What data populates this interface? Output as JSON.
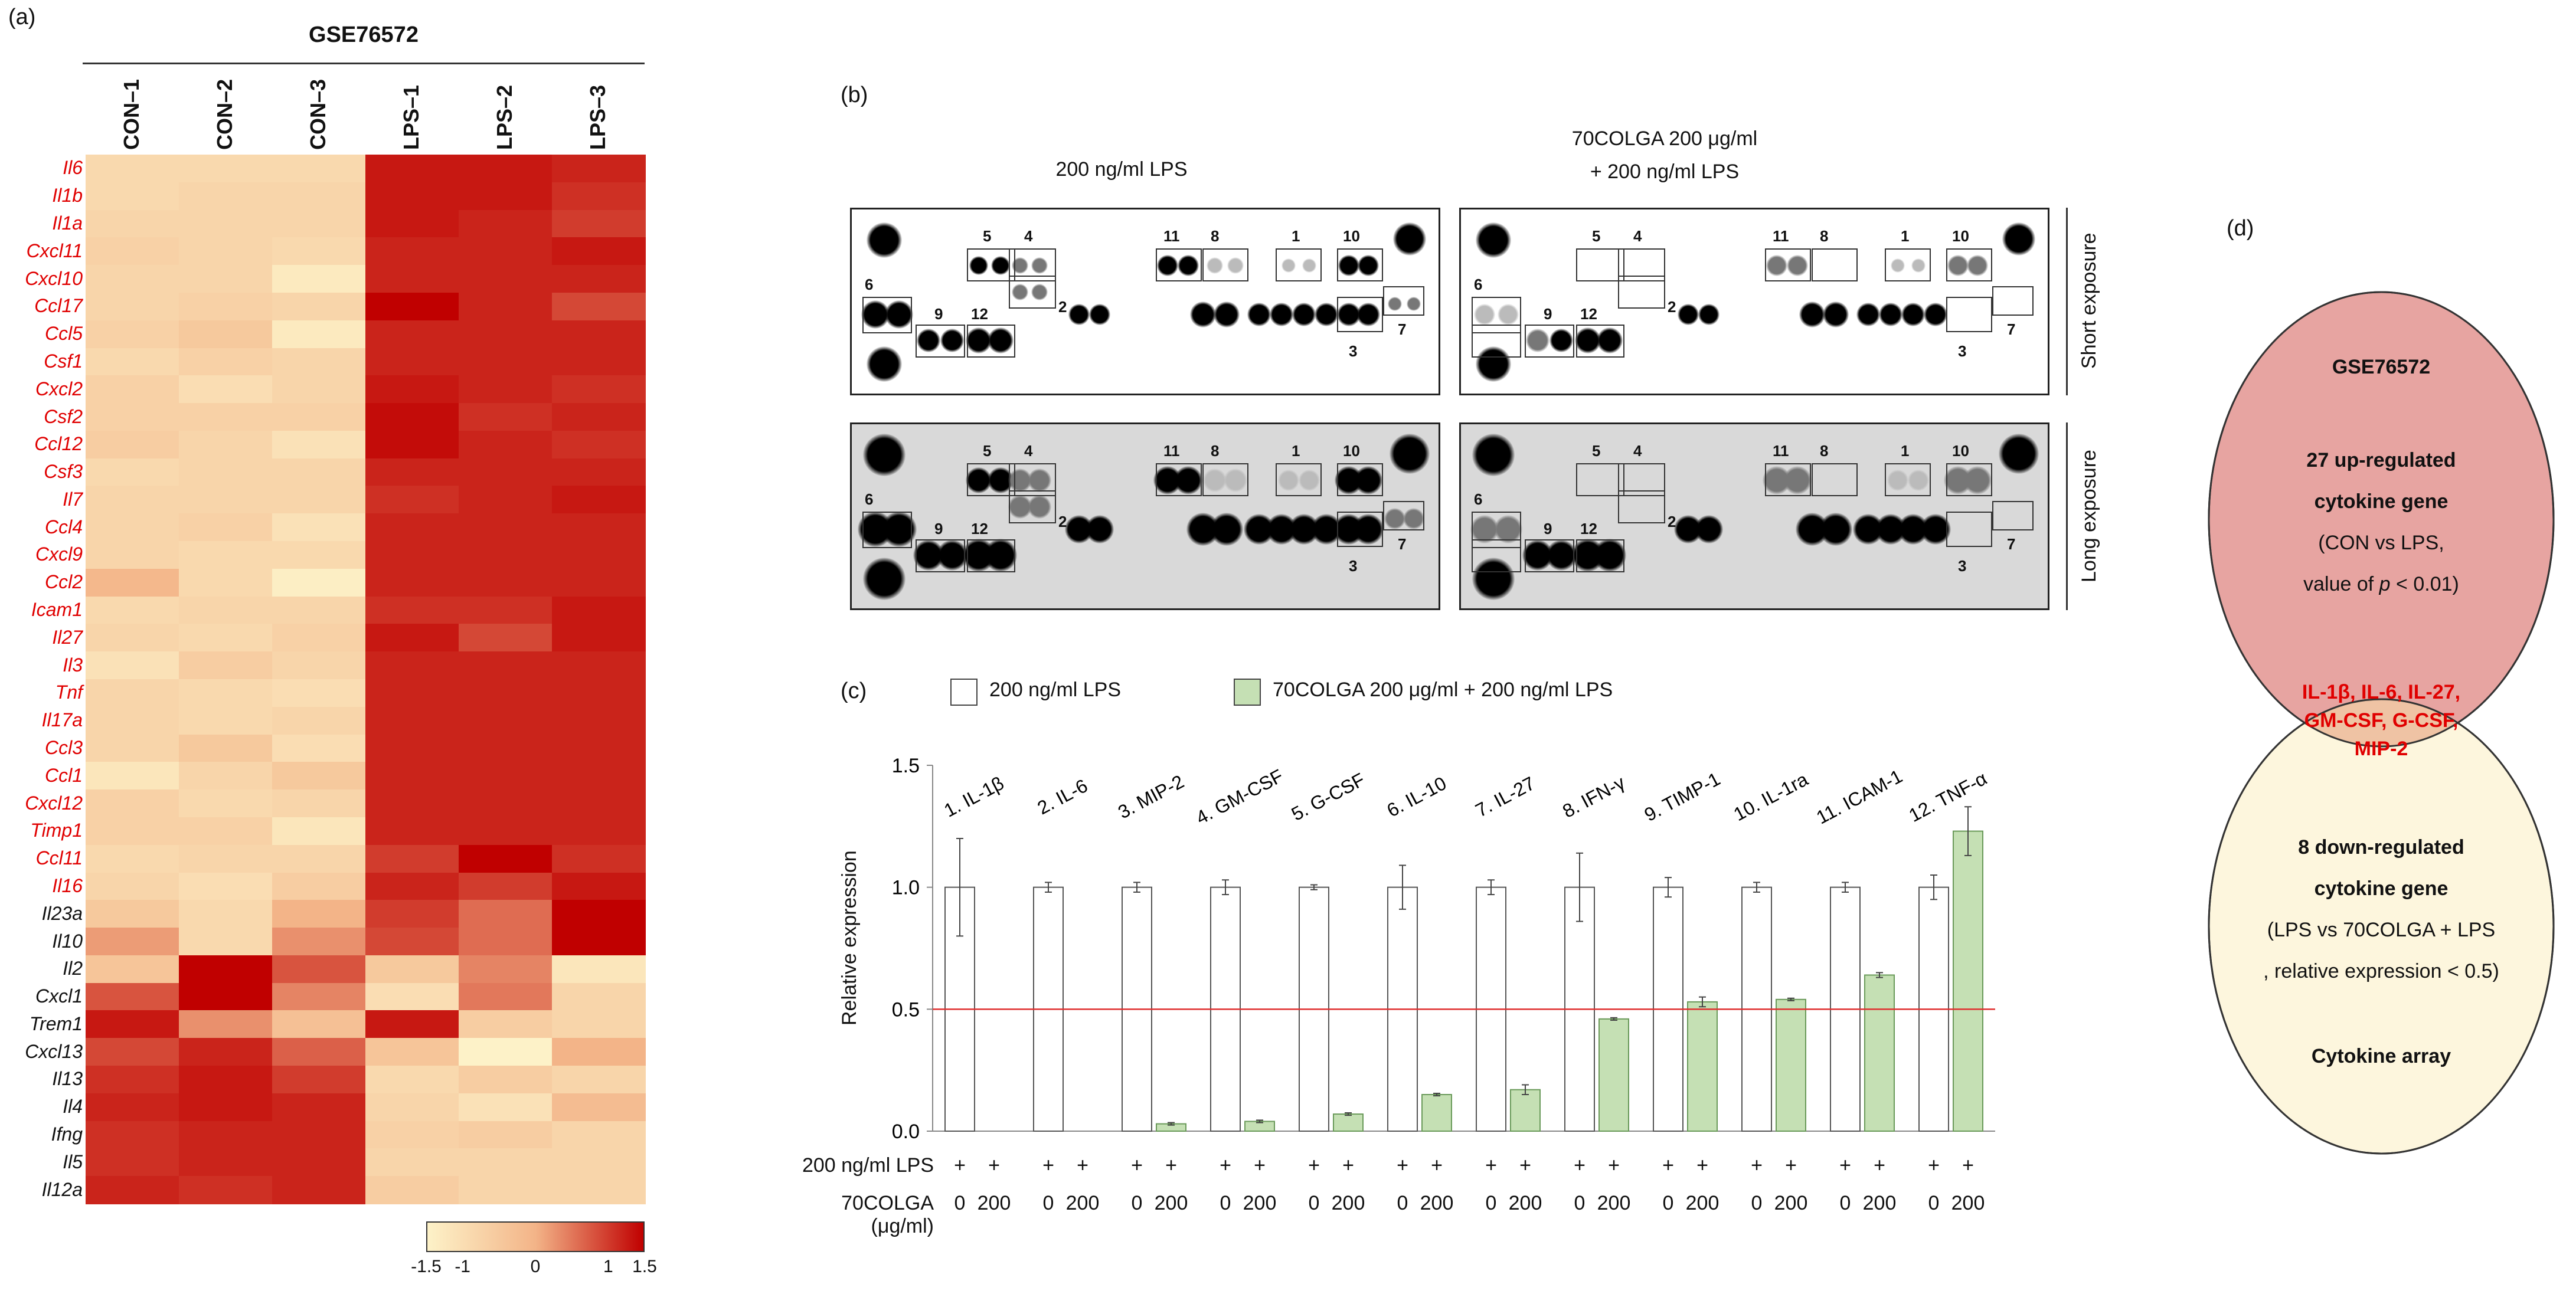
{
  "panels": {
    "a": "(a)",
    "b": "(b)",
    "c": "(c)",
    "d": "(d)"
  },
  "heatmap": {
    "title": "GSE76572",
    "columns": [
      "CON–1",
      "CON–2",
      "CON–3",
      "LPS–1",
      "LPS–2",
      "LPS–3"
    ],
    "genes": [
      {
        "name": "Il6",
        "up": true,
        "z": [
          -0.9,
          -0.9,
          -0.9,
          1.3,
          1.3,
          1.2
        ]
      },
      {
        "name": "Il1b",
        "up": true,
        "z": [
          -0.9,
          -0.8,
          -0.8,
          1.3,
          1.3,
          1.1
        ]
      },
      {
        "name": "Il1a",
        "up": true,
        "z": [
          -0.8,
          -0.8,
          -0.8,
          1.3,
          1.2,
          1.0
        ]
      },
      {
        "name": "Cxcl11",
        "up": true,
        "z": [
          -0.7,
          -0.8,
          -0.9,
          1.2,
          1.2,
          1.3
        ]
      },
      {
        "name": "Cxcl10",
        "up": true,
        "z": [
          -0.8,
          -0.8,
          -1.3,
          1.2,
          1.2,
          1.2
        ]
      },
      {
        "name": "Ccl17",
        "up": true,
        "z": [
          -0.8,
          -0.7,
          -0.8,
          1.5,
          1.2,
          0.9
        ]
      },
      {
        "name": "Ccl5",
        "up": true,
        "z": [
          -0.7,
          -0.5,
          -1.3,
          1.2,
          1.2,
          1.2
        ]
      },
      {
        "name": "Csf1",
        "up": true,
        "z": [
          -0.9,
          -0.7,
          -0.8,
          1.2,
          1.2,
          1.2
        ]
      },
      {
        "name": "Cxcl2",
        "up": true,
        "z": [
          -0.7,
          -1.0,
          -0.8,
          1.3,
          1.2,
          1.1
        ]
      },
      {
        "name": "Csf2",
        "up": true,
        "z": [
          -0.7,
          -0.7,
          -0.7,
          1.4,
          1.1,
          1.2
        ]
      },
      {
        "name": "Ccl12",
        "up": true,
        "z": [
          -0.6,
          -0.8,
          -1.1,
          1.4,
          1.2,
          1.1
        ]
      },
      {
        "name": "Csf3",
        "up": true,
        "z": [
          -0.9,
          -0.8,
          -0.8,
          1.2,
          1.2,
          1.2
        ]
      },
      {
        "name": "Il7",
        "up": true,
        "z": [
          -0.8,
          -0.8,
          -0.8,
          1.1,
          1.2,
          1.3
        ]
      },
      {
        "name": "Ccl4",
        "up": true,
        "z": [
          -0.8,
          -0.7,
          -1.1,
          1.2,
          1.2,
          1.2
        ]
      },
      {
        "name": "Cxcl9",
        "up": true,
        "z": [
          -0.8,
          -0.9,
          -0.9,
          1.2,
          1.2,
          1.2
        ]
      },
      {
        "name": "Ccl2",
        "up": true,
        "z": [
          -0.1,
          -0.9,
          -1.4,
          1.2,
          1.2,
          1.2
        ]
      },
      {
        "name": "Icam1",
        "up": true,
        "z": [
          -0.9,
          -0.8,
          -0.8,
          1.1,
          1.1,
          1.3
        ]
      },
      {
        "name": "Il27",
        "up": true,
        "z": [
          -0.8,
          -0.9,
          -0.7,
          1.3,
          0.9,
          1.3
        ]
      },
      {
        "name": "Il3",
        "up": true,
        "z": [
          -1.1,
          -0.6,
          -0.8,
          1.2,
          1.2,
          1.2
        ]
      },
      {
        "name": "Tnf",
        "up": true,
        "z": [
          -0.8,
          -0.9,
          -1.0,
          1.2,
          1.2,
          1.2
        ]
      },
      {
        "name": "Il17a",
        "up": true,
        "z": [
          -0.8,
          -0.9,
          -0.8,
          1.2,
          1.2,
          1.2
        ]
      },
      {
        "name": "Ccl3",
        "up": true,
        "z": [
          -0.8,
          -0.5,
          -1.0,
          1.2,
          1.2,
          1.2
        ]
      },
      {
        "name": "Ccl1",
        "up": true,
        "z": [
          -1.2,
          -0.8,
          -0.5,
          1.2,
          1.2,
          1.2
        ]
      },
      {
        "name": "Cxcl12",
        "up": true,
        "z": [
          -0.7,
          -0.9,
          -0.8,
          1.2,
          1.2,
          1.2
        ]
      },
      {
        "name": "Timp1",
        "up": true,
        "z": [
          -0.7,
          -0.7,
          -1.2,
          1.2,
          1.2,
          1.2
        ]
      },
      {
        "name": "Ccl11",
        "up": true,
        "z": [
          -0.9,
          -0.8,
          -0.8,
          1.0,
          1.5,
          1.1
        ]
      },
      {
        "name": "Il16",
        "up": true,
        "z": [
          -0.8,
          -1.0,
          -0.6,
          1.2,
          1.0,
          1.3
        ]
      },
      {
        "name": "Il23a",
        "up": false,
        "z": [
          -0.5,
          -0.9,
          0.0,
          1.0,
          0.6,
          1.5
        ]
      },
      {
        "name": "Il10",
        "up": false,
        "z": [
          0.2,
          -0.9,
          0.3,
          0.9,
          0.6,
          1.5
        ]
      },
      {
        "name": "Il2",
        "up": false,
        "z": [
          -0.4,
          1.5,
          0.8,
          -0.5,
          0.4,
          -1.2
        ]
      },
      {
        "name": "Cxcl1",
        "up": false,
        "z": [
          0.8,
          1.5,
          0.4,
          -1.0,
          0.5,
          -0.8
        ]
      },
      {
        "name": "Trem1",
        "up": false,
        "z": [
          1.3,
          0.3,
          -0.3,
          1.3,
          -0.6,
          -0.8
        ]
      },
      {
        "name": "Cxcl13",
        "up": false,
        "z": [
          0.9,
          1.2,
          0.7,
          -0.4,
          -1.5,
          0.0
        ]
      },
      {
        "name": "Il13",
        "up": false,
        "z": [
          1.1,
          1.3,
          1.0,
          -0.9,
          -0.6,
          -0.8
        ]
      },
      {
        "name": "Il4",
        "up": false,
        "z": [
          1.2,
          1.3,
          1.2,
          -0.8,
          -1.1,
          -0.2
        ]
      },
      {
        "name": "Ifng",
        "up": false,
        "z": [
          1.1,
          1.2,
          1.2,
          -0.7,
          -0.6,
          -0.8
        ]
      },
      {
        "name": "Il5",
        "up": false,
        "z": [
          1.1,
          1.2,
          1.2,
          -0.8,
          -0.8,
          -0.8
        ]
      },
      {
        "name": "Il12a",
        "up": false,
        "z": [
          1.2,
          1.1,
          1.2,
          -0.6,
          -0.8,
          -0.8
        ]
      }
    ],
    "legend_ticks": [
      "-1.5",
      "-1",
      "0",
      "1",
      "1.5"
    ],
    "colors": {
      "low": "#fdf2c8",
      "mid": "#f3b488",
      "high": "#c00000",
      "up_label": "#e00000",
      "down_label": "#111111"
    }
  },
  "blots": {
    "title_left": "200 ng/ml LPS",
    "title_right_1": "70COLGA 200 μg/ml",
    "title_right_2": "+ 200 ng/ml LPS",
    "short_label": "Short exposure",
    "long_label": "Long exposure",
    "spot_numbers": [
      "1",
      "2",
      "3",
      "4",
      "5",
      "6",
      "7",
      "8",
      "9",
      "10",
      "11",
      "12"
    ]
  },
  "chart_data": {
    "type": "bar",
    "title": "",
    "xlabel": "",
    "ylabel": "Relative expression",
    "ylim": [
      0,
      1.5
    ],
    "yticks": [
      "0.0",
      "0.5",
      "1.0",
      "1.5"
    ],
    "threshold": 0.5,
    "categories": [
      "1. IL-1β",
      "2. IL-6",
      "3. MIP-2",
      "4. GM-CSF",
      "5. G-CSF",
      "6. IL-10",
      "7. IL-27",
      "8. IFN-γ",
      "9. TIMP-1",
      "10. IL-1ra",
      "11. ICAM-1",
      "12. TNF-α"
    ],
    "series": [
      {
        "name": "200 ng/ml LPS",
        "color": "#ffffff",
        "values": [
          1.0,
          1.0,
          1.0,
          1.0,
          1.0,
          1.0,
          1.0,
          1.0,
          1.0,
          1.0,
          1.0,
          1.0
        ],
        "errors": [
          0.2,
          0.02,
          0.02,
          0.03,
          0.01,
          0.09,
          0.03,
          0.14,
          0.04,
          0.02,
          0.02,
          0.05
        ]
      },
      {
        "name": "70COLGA 200 μg/ml + 200 ng/ml LPS",
        "color": "#c5e0b4",
        "values": [
          0.0,
          0.0,
          0.03,
          0.04,
          0.07,
          0.15,
          0.17,
          0.46,
          0.53,
          0.54,
          0.64,
          1.23
        ],
        "errors": [
          0,
          0,
          0.005,
          0.005,
          0.005,
          0.005,
          0.02,
          0.005,
          0.02,
          0.005,
          0.01,
          0.1
        ]
      }
    ],
    "bottom_rows": [
      {
        "label": "200 ng/ml LPS",
        "values": [
          "+",
          "+"
        ]
      },
      {
        "label": "70COLGA (μg/ml)",
        "values": [
          "0",
          "200"
        ]
      }
    ]
  },
  "venn": {
    "top_title": "GSE76572",
    "top_line1": "27 up-regulated",
    "top_line2": "cytokine gene",
    "top_line3": "(CON vs LPS,",
    "top_line4_pre": "value of ",
    "top_line4_p": "p",
    "top_line4_post": " < 0.01)",
    "overlap_line1": "IL-1β, IL-6, IL-27,",
    "overlap_line2": "GM-CSF, G-CSF,",
    "overlap_line3": "MIP-2",
    "bottom_line1": "8 down-regulated",
    "bottom_line2": "cytokine gene",
    "bottom_line3": "(LPS vs 70COLGA + LPS",
    "bottom_line4": ", relative expression < 0.5)",
    "bottom_title": "Cytokine array",
    "colors": {
      "top": "#e7a4a1",
      "bottom": "#fdf6dd",
      "overlap": "#efc3a4",
      "overlap_text": "#e00000"
    }
  }
}
